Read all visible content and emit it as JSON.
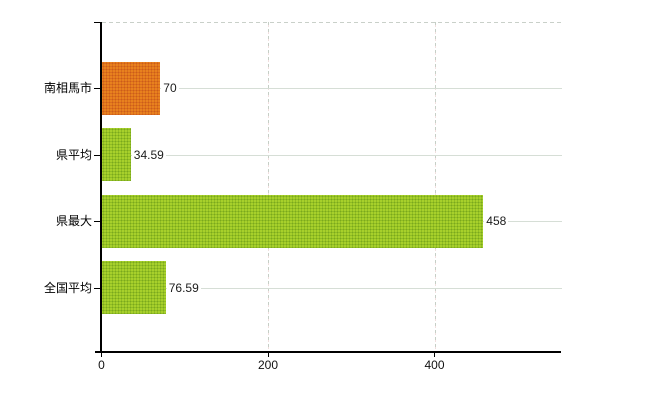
{
  "chart_data": {
    "type": "bar",
    "orientation": "horizontal",
    "title": "",
    "xlabel": "",
    "ylabel": "",
    "categories": [
      "南相馬市",
      "県平均",
      "県最大",
      "全国平均"
    ],
    "values": [
      70,
      34.59,
      458,
      76.59
    ],
    "value_labels": [
      "70",
      "34.59",
      "458",
      "76.59"
    ],
    "bar_fills": [
      {
        "base": "#e8811e",
        "dot": "#cc5c1a"
      },
      {
        "base": "#a7d02b",
        "dot": "#7aa91c"
      },
      {
        "base": "#a7d02b",
        "dot": "#7aa91c"
      },
      {
        "base": "#a7d02b",
        "dot": "#7aa91c"
      }
    ],
    "x_ticks": [
      0,
      200,
      400
    ],
    "x_tick_labels": [
      "0",
      "200",
      "400"
    ],
    "xlim": [
      0,
      552
    ],
    "grid": true,
    "legend": false,
    "colors": {
      "highlight_bar": "#e0761c",
      "default_bar": "#9cc520",
      "axis": "#000000",
      "gridline_h": "#d6ded6",
      "gridline_v": "#c6cfc6",
      "background": "#ffffff",
      "text": "#1c1c1c"
    }
  }
}
